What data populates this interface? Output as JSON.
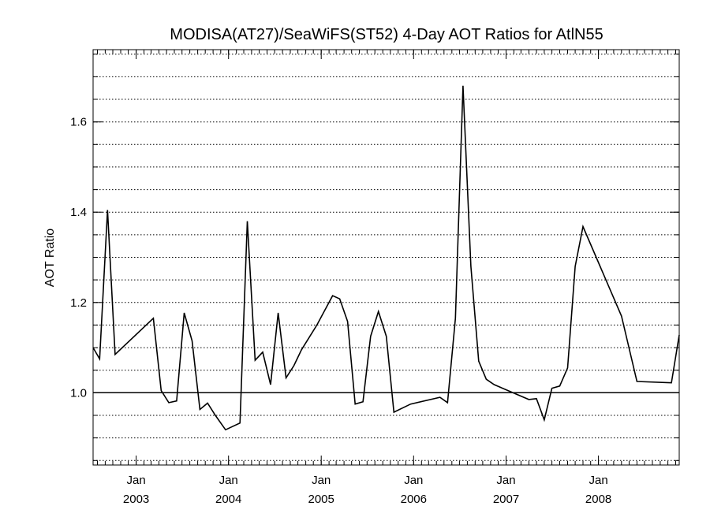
{
  "chart_data": {
    "type": "line",
    "title": "MODISA(AT27)/SeaWiFS(ST52) 4-Day AOT Ratios for AtlN55",
    "xlabel": "",
    "ylabel": "AOT Ratio",
    "xlim": [
      "2002-07-15",
      "2008-11-15"
    ],
    "ylim": [
      0.84,
      1.76
    ],
    "y_ticks": [
      1.0,
      1.2,
      1.4,
      1.6
    ],
    "y_tick_labels": [
      "1.0",
      "1.2",
      "1.4",
      "1.6"
    ],
    "x_ticks": [
      {
        "date": "2003-01-01",
        "month": "Jan",
        "year": "2003"
      },
      {
        "date": "2004-01-01",
        "month": "Jan",
        "year": "2004"
      },
      {
        "date": "2005-01-01",
        "month": "Jan",
        "year": "2005"
      },
      {
        "date": "2006-01-01",
        "month": "Jan",
        "year": "2006"
      },
      {
        "date": "2007-01-01",
        "month": "Jan",
        "year": "2007"
      },
      {
        "date": "2008-01-01",
        "month": "Jan",
        "year": "2008"
      }
    ],
    "grid": {
      "y_dotted": true,
      "y_step": 0.05,
      "x": false
    },
    "reference_line": 1.0,
    "series": [
      {
        "color": "#000000",
        "x": [
          "2002-07-15",
          "2002-08-10",
          "2002-09-10",
          "2002-10-10",
          "2003-03-10",
          "2003-04-10",
          "2003-05-10",
          "2003-06-10",
          "2003-07-10",
          "2003-08-10",
          "2003-09-10",
          "2003-10-10",
          "2003-11-10",
          "2003-12-20",
          "2004-02-15",
          "2004-03-15",
          "2004-04-15",
          "2004-05-15",
          "2004-06-15",
          "2004-07-15",
          "2004-08-15",
          "2004-09-15",
          "2004-10-15",
          "2004-12-15",
          "2005-02-15",
          "2005-03-15",
          "2005-04-15",
          "2005-05-15",
          "2005-06-15",
          "2005-07-15",
          "2005-08-15",
          "2005-09-15",
          "2005-10-15",
          "2005-12-20",
          "2006-04-15",
          "2006-05-15",
          "2006-06-15",
          "2006-07-15",
          "2006-08-15",
          "2006-09-15",
          "2006-10-15",
          "2006-11-15",
          "2007-04-01",
          "2007-05-01",
          "2007-06-01",
          "2007-07-01",
          "2007-08-01",
          "2007-09-01",
          "2007-10-01",
          "2007-11-01",
          "2008-04-01",
          "2008-06-01",
          "2008-10-15",
          "2008-11-15"
        ],
        "y": [
          1.1,
          1.075,
          1.405,
          1.085,
          1.165,
          1.005,
          0.978,
          0.982,
          1.177,
          1.115,
          0.963,
          0.977,
          0.95,
          0.918,
          0.933,
          1.38,
          1.072,
          1.09,
          1.018,
          1.177,
          1.033,
          1.06,
          1.095,
          1.15,
          1.215,
          1.208,
          1.158,
          0.975,
          0.98,
          1.125,
          1.18,
          1.125,
          0.957,
          0.975,
          0.99,
          0.978,
          1.165,
          1.68,
          1.28,
          1.07,
          1.03,
          1.018,
          0.985,
          0.987,
          0.94,
          1.01,
          1.015,
          1.055,
          1.28,
          1.368,
          1.17,
          1.025,
          1.022,
          1.128
        ]
      }
    ]
  }
}
